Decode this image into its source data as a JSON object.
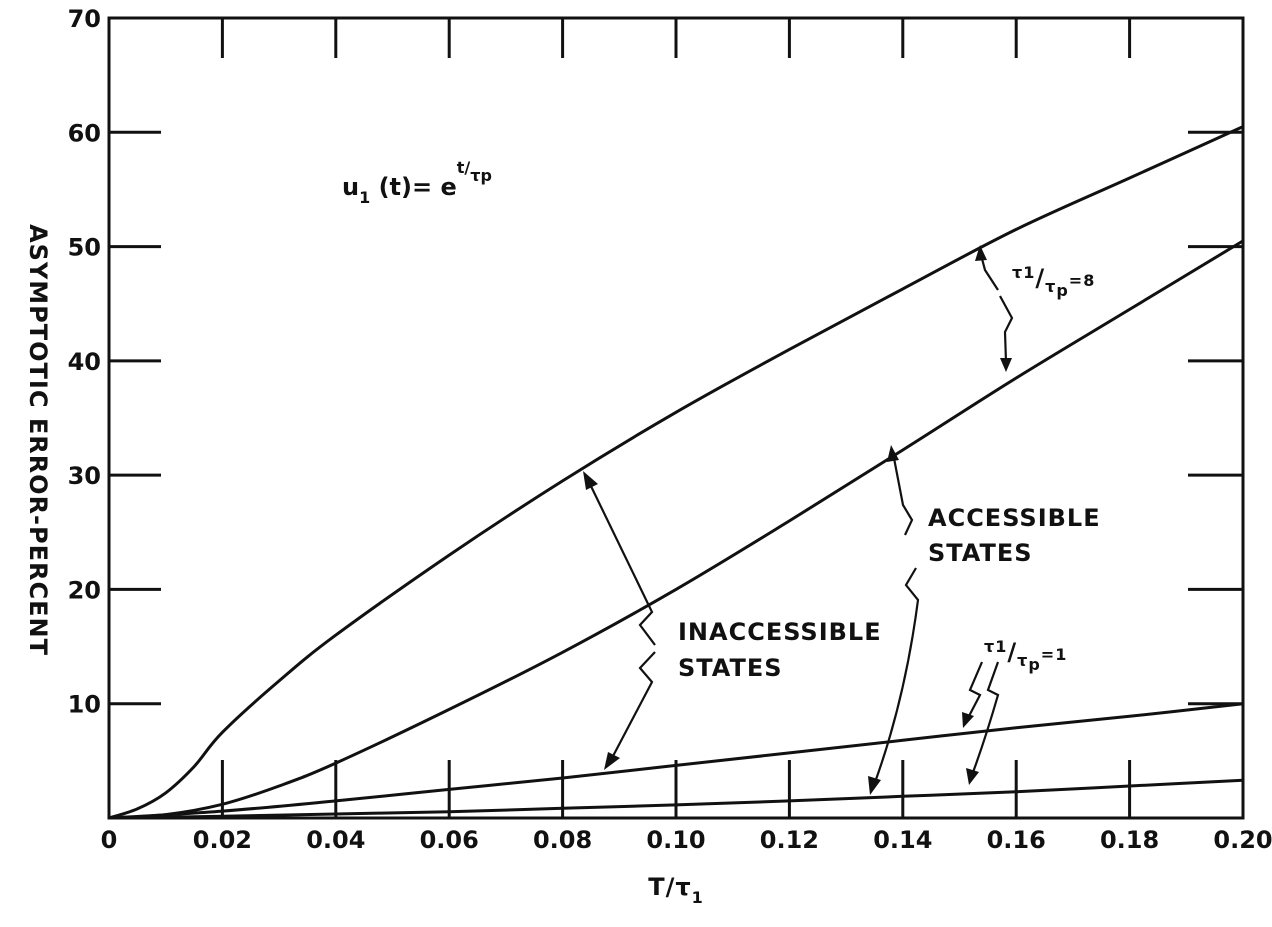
{
  "chart_data": {
    "type": "line",
    "xlabel": "T/τ1",
    "ylabel": "ASYMPTOTIC ERROR-PERCENT",
    "xlim": [
      0,
      0.2
    ],
    "ylim": [
      0,
      70
    ],
    "x_ticks": [
      0,
      0.02,
      0.04,
      0.06,
      0.08,
      0.1,
      0.12,
      0.14,
      0.16,
      0.18,
      0.2
    ],
    "x_tick_labels": [
      "0",
      "0.02",
      "0.04",
      "0.06",
      "0.08",
      "0.10",
      "0.12",
      "0.14",
      "0.16",
      "0.18",
      "0.20"
    ],
    "y_ticks": [
      0,
      10,
      20,
      30,
      40,
      50,
      60,
      70
    ],
    "y_tick_labels": [
      "",
      "10",
      "20",
      "30",
      "40",
      "50",
      "60",
      "70"
    ],
    "grid": false,
    "series": [
      {
        "x": [
          0,
          0.005,
          0.01,
          0.015,
          0.02,
          0.03,
          0.04,
          0.06,
          0.08,
          0.1,
          0.12,
          0.14,
          0.16,
          0.18,
          0.2
        ],
        "values": [
          0,
          0.8,
          2.2,
          4.5,
          7.5,
          12,
          16,
          23,
          29.5,
          35.5,
          41,
          46.3,
          51.5,
          56,
          60.5
        ]
      },
      {
        "x": [
          0,
          0.01,
          0.02,
          0.03,
          0.04,
          0.06,
          0.08,
          0.1,
          0.12,
          0.14,
          0.16,
          0.18,
          0.2
        ],
        "values": [
          0,
          0.3,
          1.2,
          2.8,
          4.8,
          9.5,
          14.5,
          20,
          26,
          32.2,
          38.5,
          44.5,
          50.5
        ]
      },
      {
        "x": [
          0,
          0.02,
          0.04,
          0.06,
          0.08,
          0.1,
          0.12,
          0.14,
          0.16,
          0.18,
          0.2
        ],
        "values": [
          0,
          0.6,
          1.5,
          2.5,
          3.5,
          4.6,
          5.7,
          6.8,
          7.9,
          8.9,
          10
        ]
      },
      {
        "x": [
          0,
          0.02,
          0.04,
          0.06,
          0.08,
          0.1,
          0.12,
          0.14,
          0.16,
          0.18,
          0.2
        ],
        "values": [
          0,
          0.15,
          0.35,
          0.55,
          0.85,
          1.15,
          1.5,
          1.9,
          2.3,
          2.8,
          3.3
        ]
      }
    ],
    "annotations": {
      "formula": {
        "main": "u",
        "sub1": "1",
        "mid": " (t)= e",
        "exp": "t/",
        "exp_sub": "τp"
      },
      "ratio_high": {
        "tau": "τ",
        "sub": "1",
        "slash": "/",
        "tau_p": "τ",
        "sub_p": "p",
        "value": "=8"
      },
      "ratio_low": {
        "tau": "τ",
        "sub": "1",
        "slash": "/",
        "tau_p": "τ",
        "sub_p": "p",
        "value": "=1"
      },
      "inaccessible_line1": "INACCESSIBLE",
      "inaccessible_line2": "STATES",
      "accessible_line1": "ACCESSIBLE",
      "accessible_line2": "STATES"
    }
  }
}
